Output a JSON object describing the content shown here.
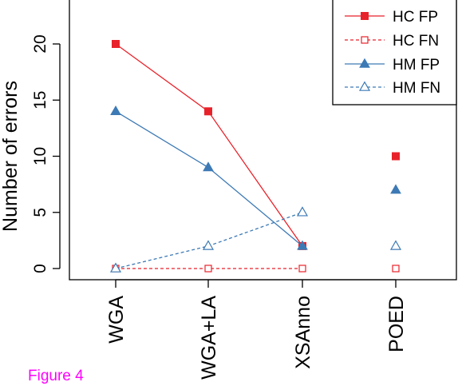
{
  "figure_label": "Figure 4",
  "colors": {
    "hc": "#e8222a",
    "hm": "#3d7ab5",
    "figure_label": "#ff00ff"
  },
  "chart_data": {
    "type": "line",
    "categories": [
      "WGA",
      "WGA+LA",
      "XSAnno",
      "POED"
    ],
    "ylabel": "Number of errors",
    "ylim": [
      0,
      23
    ],
    "yticks": [
      0,
      5,
      10,
      15,
      20
    ],
    "grid": false,
    "legend_position": "top-right",
    "series": [
      {
        "name": "HC FP",
        "values": [
          20,
          14,
          2,
          10
        ],
        "color": "#e8222a",
        "marker": "square-filled",
        "line": "solid",
        "connected_points": 3
      },
      {
        "name": "HC FN",
        "values": [
          0,
          0,
          0,
          0
        ],
        "color": "#e8222a",
        "marker": "square-open",
        "line": "dashed",
        "connected_points": 3
      },
      {
        "name": "HM FP",
        "values": [
          14,
          9,
          2,
          7
        ],
        "color": "#3d7ab5",
        "marker": "triangle-filled",
        "line": "solid",
        "connected_points": 3
      },
      {
        "name": "HM FN",
        "values": [
          0,
          2,
          5,
          2
        ],
        "color": "#3d7ab5",
        "marker": "triangle-open",
        "line": "dashed",
        "connected_points": 3
      }
    ]
  }
}
